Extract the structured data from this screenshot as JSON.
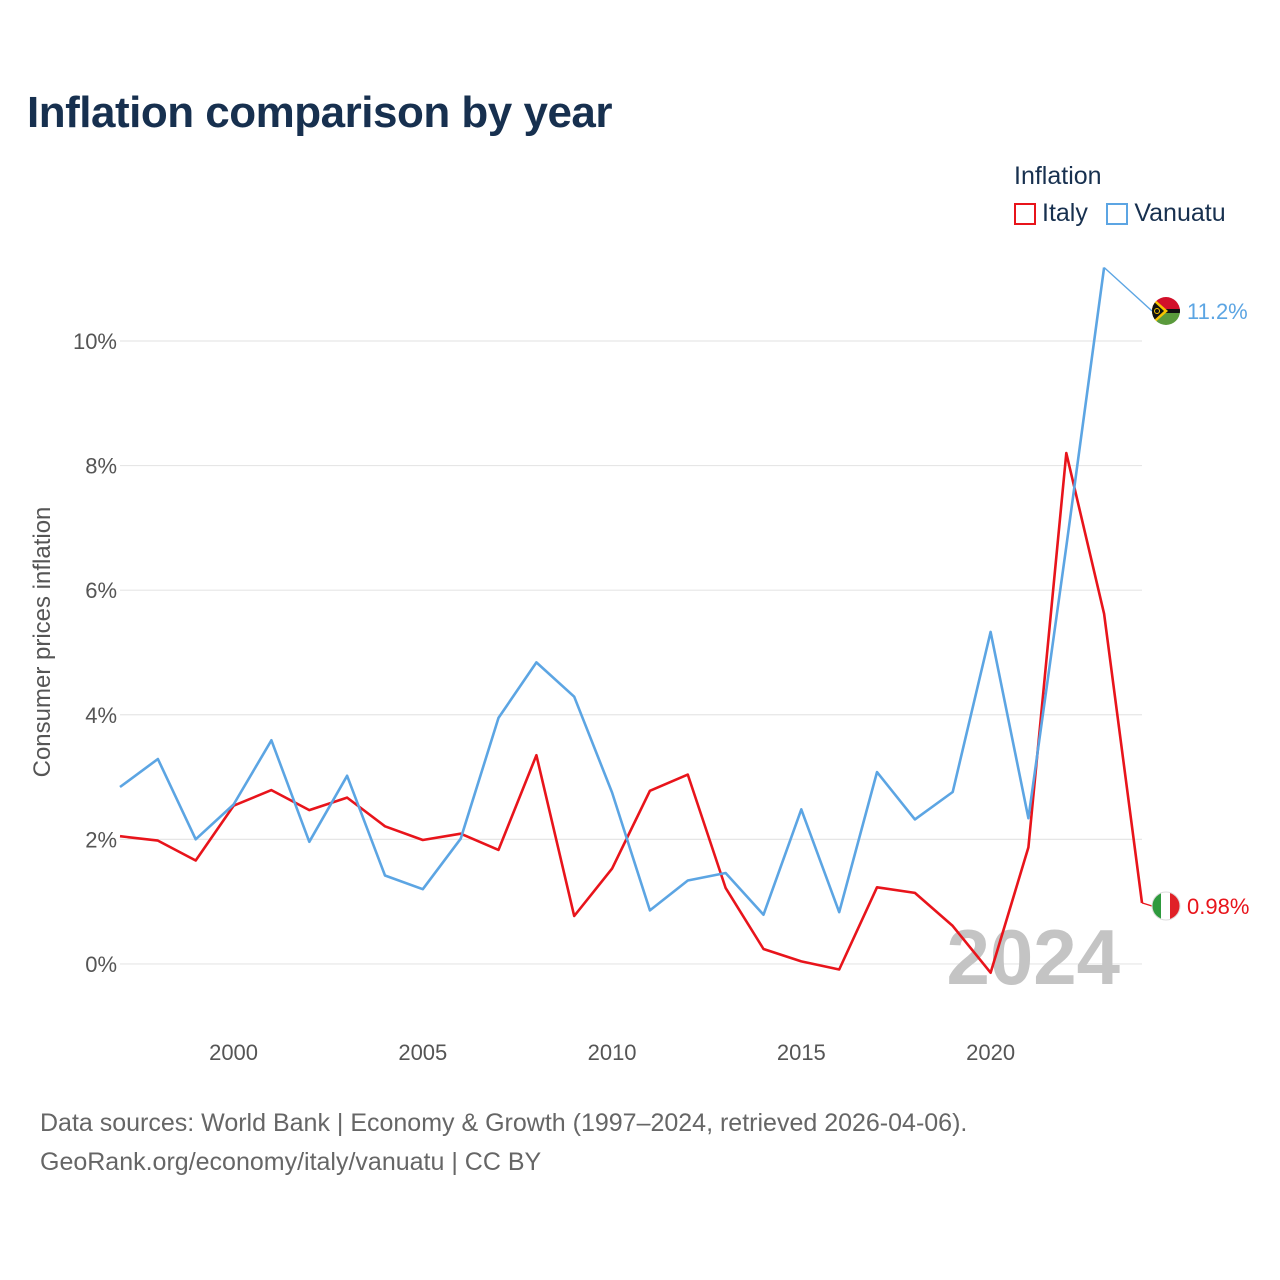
{
  "chart_data": {
    "type": "line",
    "title": "Inflation comparison by year",
    "ylabel": "Consumer prices inflation",
    "xlabel": "",
    "legend_title": "Inflation",
    "legend_position": "top-right",
    "x": [
      1997,
      1998,
      1999,
      2000,
      2001,
      2002,
      2003,
      2004,
      2005,
      2006,
      2007,
      2008,
      2009,
      2010,
      2011,
      2012,
      2013,
      2014,
      2015,
      2016,
      2017,
      2018,
      2019,
      2020,
      2021,
      2022,
      2023,
      2024
    ],
    "series": [
      {
        "name": "Italy",
        "color": "#e8141b",
        "values": [
          2.05,
          1.98,
          1.66,
          2.54,
          2.79,
          2.47,
          2.67,
          2.21,
          1.99,
          2.09,
          1.83,
          3.35,
          0.77,
          1.53,
          2.78,
          3.04,
          1.22,
          0.24,
          0.04,
          -0.09,
          1.23,
          1.14,
          0.61,
          -0.14,
          1.87,
          8.2,
          5.62,
          0.98
        ],
        "end_label": "0.98%",
        "flag": "italy-flag-icon"
      },
      {
        "name": "Vanuatu",
        "color": "#5ca5e3",
        "values": [
          2.84,
          3.29,
          2.0,
          2.56,
          3.59,
          1.96,
          3.02,
          1.42,
          1.2,
          2.01,
          3.95,
          4.84,
          4.29,
          2.75,
          0.86,
          1.34,
          1.46,
          0.79,
          2.48,
          0.83,
          3.08,
          2.32,
          2.76,
          5.33,
          2.34,
          6.7,
          11.18,
          null
        ],
        "end_label": "11.2%",
        "flag": "vanuatu-flag-icon"
      }
    ],
    "xticks": [
      2000,
      2005,
      2010,
      2015,
      2020
    ],
    "xtick_labels": [
      "2000",
      "2005",
      "2010",
      "2015",
      "2020"
    ],
    "yticks": [
      0,
      2,
      4,
      6,
      8,
      10
    ],
    "ytick_labels": [
      "0%",
      "2%",
      "4%",
      "6%",
      "8%",
      "10%"
    ],
    "xlim": [
      1997,
      2024
    ],
    "ylim": [
      -0.9,
      11.3
    ],
    "grid": true,
    "year_watermark": "2024"
  },
  "footer": {
    "line1": "Data sources: World Bank | Economy & Growth (1997–2024, retrieved 2026-04-06).",
    "line2": "GeoRank.org/economy/italy/vanuatu | CC BY"
  }
}
